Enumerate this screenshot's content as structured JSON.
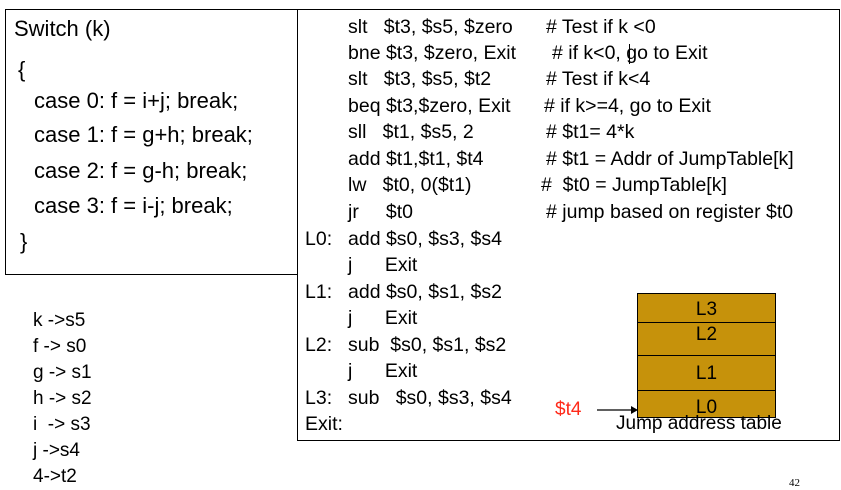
{
  "switch_block": {
    "lines": [
      "Switch (k)",
      "{",
      "case 0: f = i+j; break;",
      "case 1: f = g+h; break;",
      "case 2: f = g-h; break;",
      "case 3: f = i-j; break;",
      "}"
    ]
  },
  "register_map": [
    "k ->s5",
    "f -> s0",
    "g -> s1",
    "h -> s2",
    "i  -> s3",
    "j ->s4",
    "4->t2"
  ],
  "code": {
    "lines": [
      {
        "label": "",
        "instr": "slt   $t3, $s5, $zero",
        "comment": "# Test if k <0"
      },
      {
        "label": "",
        "instr": "bne $t3, $zero, Exit",
        "comment": "# if k<0, go to Exit"
      },
      {
        "label": "",
        "instr": "slt   $t3, $s5, $t2",
        "comment": "# Test if k<4"
      },
      {
        "label": "",
        "instr": "beq $t3,$zero, Exit",
        "comment": "# if k>=4, go to Exit"
      },
      {
        "label": "",
        "instr": "sll   $t1, $s5, 2",
        "comment": "# $t1= 4*k"
      },
      {
        "label": "",
        "instr": "add $t1,$t1, $t4",
        "comment": "# $t1 = Addr of JumpTable[k]"
      },
      {
        "label": "",
        "instr": "lw   $t0, 0($t1)",
        "comment": "#  $t0 = JumpTable[k]"
      },
      {
        "label": "",
        "instr": "jr     $t0",
        "comment": "# jump based on register $t0"
      },
      {
        "label": "L0:",
        "instr": "add $s0, $s3, $s4",
        "comment": ""
      },
      {
        "label": "",
        "instr": "j      Exit",
        "comment": ""
      },
      {
        "label": "L1:",
        "instr": "add $s0, $s1, $s2",
        "comment": ""
      },
      {
        "label": "",
        "instr": "j      Exit",
        "comment": ""
      },
      {
        "label": "L2:",
        "instr": "sub  $s0, $s1, $s2",
        "comment": ""
      },
      {
        "label": "",
        "instr": "j      Exit",
        "comment": ""
      },
      {
        "label": "L3:",
        "instr": "sub   $s0, $s3, $s4",
        "comment": ""
      },
      {
        "label": "Exit:",
        "instr": "",
        "comment": ""
      }
    ]
  },
  "jump_table": {
    "entries": [
      "L3",
      "L2",
      "L1",
      "L0"
    ],
    "pointer_label": "$t4",
    "caption": "Jump address table",
    "fill_color": "#c6920b",
    "pointer_color": "#ff2a1a"
  },
  "page_number": "42"
}
